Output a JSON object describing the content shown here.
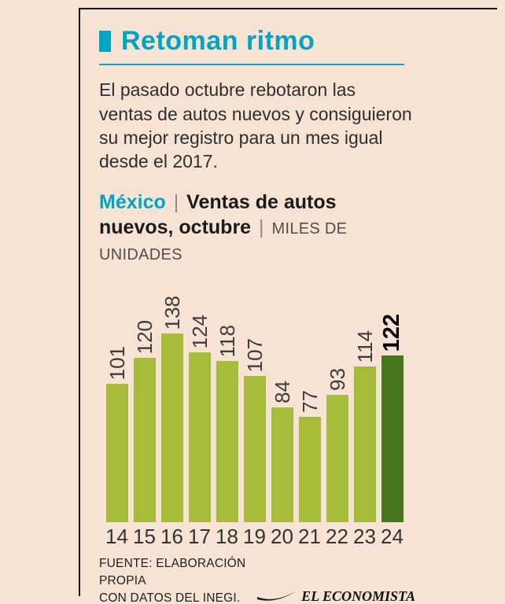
{
  "colors": {
    "background": "#f6e3d3",
    "frame": "#17181a",
    "accent": "#00a5c6",
    "body_text": "#2e2e2e"
  },
  "header": {
    "title": "Retoman ritmo",
    "accent_color": "#00a5c6"
  },
  "intro": {
    "text": "El pasado octubre rebotaron las ventas de autos nuevos y consiguieron su mejor registro para un mes igual desde el 2017."
  },
  "subtitle": {
    "region": "México",
    "separator": "|",
    "title": "Ventas de autos nuevos, octubre",
    "units": "MILES DE UNIDADES"
  },
  "chart_data": {
    "type": "bar",
    "title": "México | Ventas de autos nuevos, octubre",
    "ylabel": "MILES DE UNIDADES",
    "categories": [
      "14",
      "15",
      "16",
      "17",
      "18",
      "19",
      "20",
      "21",
      "22",
      "23",
      "24"
    ],
    "values": [
      101,
      120,
      138,
      124,
      118,
      107,
      84,
      77,
      93,
      114,
      122
    ],
    "highlight_index": 10,
    "bar_color": "#a5bd3a",
    "highlight_color": "#48761d",
    "ylim": [
      0,
      138
    ],
    "grid": false,
    "legend": "none",
    "value_labels": "rotated-90-above-bars"
  },
  "footer": {
    "source_line1": "FUENTE: ELABORACIÓN PROPIA",
    "source_line2": "CON DATOS DEL INEGI.",
    "logo_text": "EL ECONOMISTA"
  }
}
